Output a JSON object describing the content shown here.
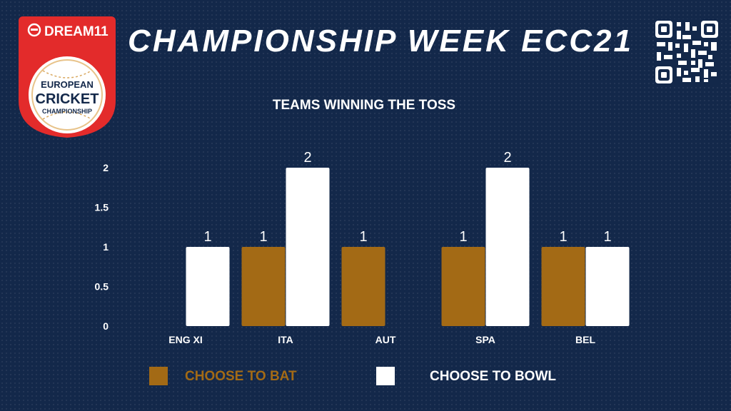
{
  "logo": {
    "brand": "DREAM11",
    "line1": "EUROPEAN",
    "line2": "CRICKET",
    "line3": "CHAMPIONSHIP"
  },
  "header": {
    "title": "CHAMPIONSHIP WEEK ECC21"
  },
  "qr_icon": "qr-code-icon",
  "colors": {
    "background": "#13284a",
    "bat": "#a36a15",
    "bowl": "#ffffff",
    "logo_red": "#e32b2b"
  },
  "chart_data": {
    "type": "bar",
    "title": "TEAMS WINNING THE TOSS",
    "categories": [
      "ENG XI",
      "ITA",
      "AUT",
      "SPA",
      "BEL"
    ],
    "series": [
      {
        "name": "CHOOSE TO BAT",
        "values": [
          null,
          1,
          1,
          1,
          1
        ]
      },
      {
        "name": "CHOOSE TO BOWL",
        "values": [
          1,
          2,
          null,
          2,
          1
        ]
      }
    ],
    "ylim": [
      0,
      2
    ],
    "yticks": [
      "0",
      "0.5",
      "1",
      "1.5",
      "2"
    ],
    "grid": false,
    "legend_position": "bottom"
  }
}
